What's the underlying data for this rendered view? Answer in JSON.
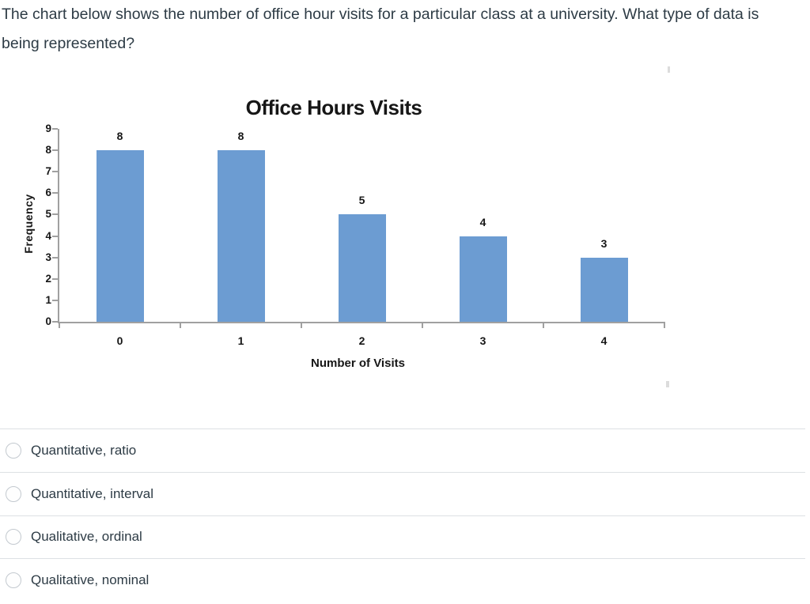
{
  "question": {
    "text": "The chart below shows the number of office hour visits for a particular class at a university. What type of data is being represented?"
  },
  "chart_data": {
    "type": "bar",
    "title": "Office Hours Visits",
    "categories": [
      "0",
      "1",
      "2",
      "3",
      "4"
    ],
    "values": [
      8,
      8,
      5,
      4,
      3
    ],
    "data_labels": [
      "8",
      "8",
      "5",
      "4",
      "3"
    ],
    "xlabel": "Number of Visits",
    "ylabel": "Frequency",
    "ylim": [
      0,
      9
    ],
    "yticks": [
      9,
      8,
      7,
      6,
      5,
      4,
      3,
      2,
      1,
      0
    ],
    "grid": false,
    "legend": false,
    "bar_color": "#6C9CD2"
  },
  "options": [
    {
      "label": "Quantitative, ratio"
    },
    {
      "label": "Quantitative, interval"
    },
    {
      "label": "Qualitative, ordinal"
    },
    {
      "label": "Qualitative, nominal"
    }
  ],
  "colors": {
    "text": "#2D3B45",
    "divider": "#dde1e4",
    "axis": "#a0a0a0",
    "chart_text": "#161616",
    "bar": "#6C9CD2"
  }
}
